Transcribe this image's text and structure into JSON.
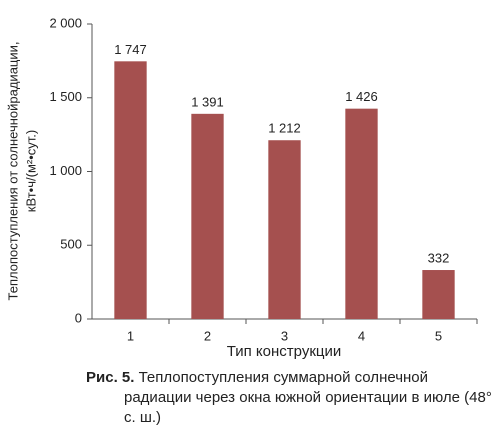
{
  "chart_data": {
    "type": "bar",
    "y_label": [
      "Теплопоступления от солнечнойрадиации,",
      "кВт•ч/(м²•сут.)"
    ],
    "x_label": "Тип конструкции",
    "categories": [
      "1",
      "2",
      "3",
      "4",
      "5"
    ],
    "values": [
      1747,
      1391,
      1212,
      1426,
      332
    ],
    "value_labels": [
      "1 747",
      "1 391",
      "1 212",
      "1 426",
      "332"
    ],
    "color": "#a5504f",
    "ylim": [
      0,
      2000
    ],
    "yticks": [
      0,
      500,
      {
        "value": 1000,
        "label": "1 000"
      },
      {
        "value": 1500,
        "label": "1 500"
      },
      {
        "value": 2000,
        "label": "2 000"
      }
    ],
    "grid": false
  },
  "caption": {
    "label": "Рис. 5.",
    "text": "Теплопоступления суммарной солнечной радиации через окна южной ориентации в июле (48° с. ш.)"
  }
}
